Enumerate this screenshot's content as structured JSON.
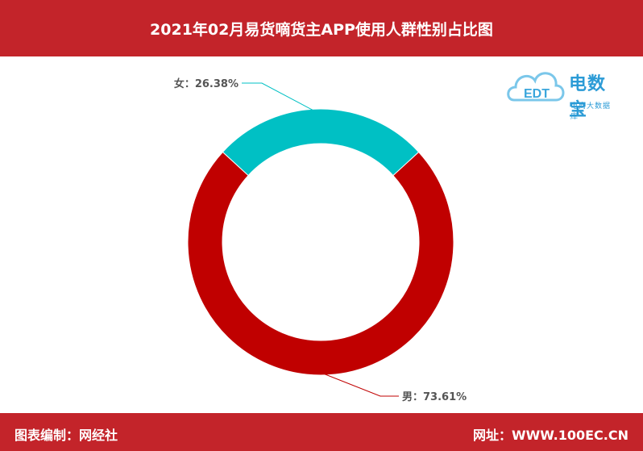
{
  "header": {
    "title": "2021年02月易货嘀货主APP使用人群性别占比图"
  },
  "footer": {
    "left": "图表编制：网经社",
    "right": "网址：WWW.100EC.CN"
  },
  "logo": {
    "main": "电数宝",
    "sub": "电商大数据库",
    "badge": "EDT"
  },
  "colors": {
    "brand_red": "#c3242a",
    "female": "#00c0c4",
    "male": "#c00000"
  },
  "chart_data": {
    "type": "pie",
    "title": "2021年02月易货嘀货主APP使用人群性别占比图",
    "donut": true,
    "slices": [
      {
        "name": "女",
        "value": 26.38,
        "label": "女：26.38%",
        "color": "#00c0c4"
      },
      {
        "name": "男",
        "value": 73.61,
        "label": "男：73.61%",
        "color": "#c00000"
      }
    ]
  }
}
